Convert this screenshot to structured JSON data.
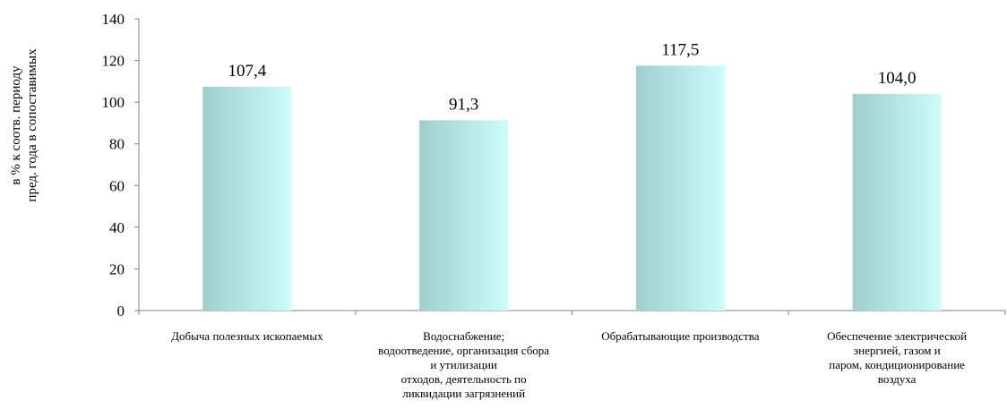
{
  "chart_data": {
    "type": "bar",
    "ylabel": "в % к соотв. периоду\nпред. года в сопоставимых",
    "ylim": [
      0,
      140
    ],
    "yticks": [
      0,
      20,
      40,
      60,
      80,
      100,
      120,
      140
    ],
    "grid": false,
    "legend": "none",
    "categories": [
      "Добыча полезных ископаемых",
      "Водоснабжение;\nводоотведение, организация сбора\nи утилизации\nотходов, деятельность по\nликвидации загрязнений",
      "Обрабатывающие производства",
      "Обеспечение электрической\nэнергией, газом и\nпаром, кондиционирование\nвоздуха"
    ],
    "values": [
      107.4,
      91.3,
      117.5,
      104.0
    ],
    "data_labels": [
      "107,4",
      "91,3",
      "117,5",
      "104,0"
    ],
    "bar_gradient": [
      "#9fcfcc",
      "#ccfdfb"
    ],
    "axis_color": "#808080"
  }
}
